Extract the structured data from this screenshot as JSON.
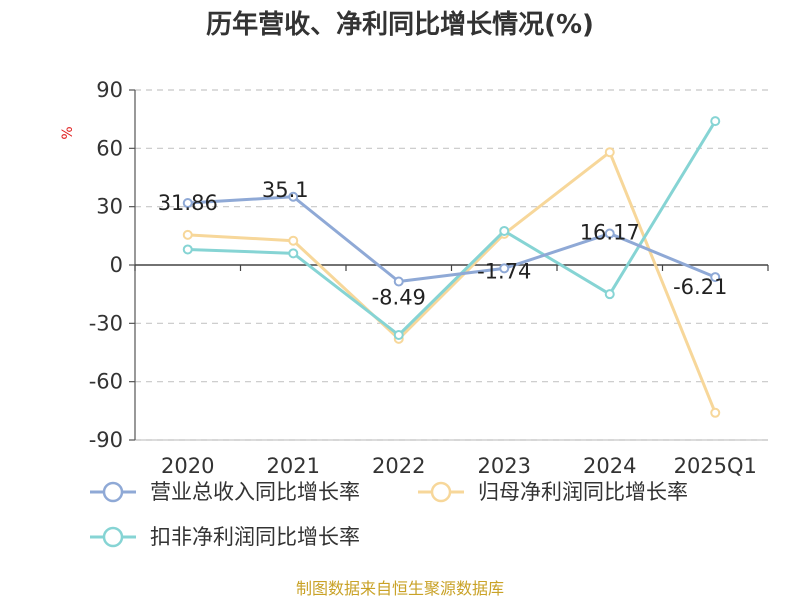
{
  "chart_data": {
    "type": "line",
    "title": "历年营收、净利同比增长情况(%)",
    "ylabel": "%",
    "categories": [
      "2020",
      "2021",
      "2022",
      "2023",
      "2024",
      "2025Q1"
    ],
    "ylim": [
      -90,
      90
    ],
    "yticks": [
      "90",
      "60",
      "30",
      "0",
      "-30",
      "-60",
      "-90"
    ],
    "ytick_values": [
      90,
      60,
      30,
      0,
      -30,
      -60,
      -90
    ],
    "grid": true,
    "legend_position": "bottom",
    "series": [
      {
        "name": "营业总收入同比增长率",
        "color": "#8fa9d6",
        "values": [
          31.86,
          35.1,
          -8.49,
          -1.74,
          16.17,
          -6.21
        ],
        "labels": [
          "31.86",
          "35.1",
          "-8.49",
          "-1.74",
          "16.17",
          "-6.21"
        ]
      },
      {
        "name": "归母净利润同比增长率",
        "color": "#f7d79a",
        "values": [
          15.5,
          12.5,
          -38.0,
          16.0,
          58.0,
          -76.0
        ]
      },
      {
        "name": "扣非净利润同比增长率",
        "color": "#86d4d4",
        "values": [
          8.0,
          6.0,
          -36.0,
          17.5,
          -15.0,
          74.0
        ]
      }
    ]
  },
  "source": "制图数据来自恒生聚源数据库"
}
